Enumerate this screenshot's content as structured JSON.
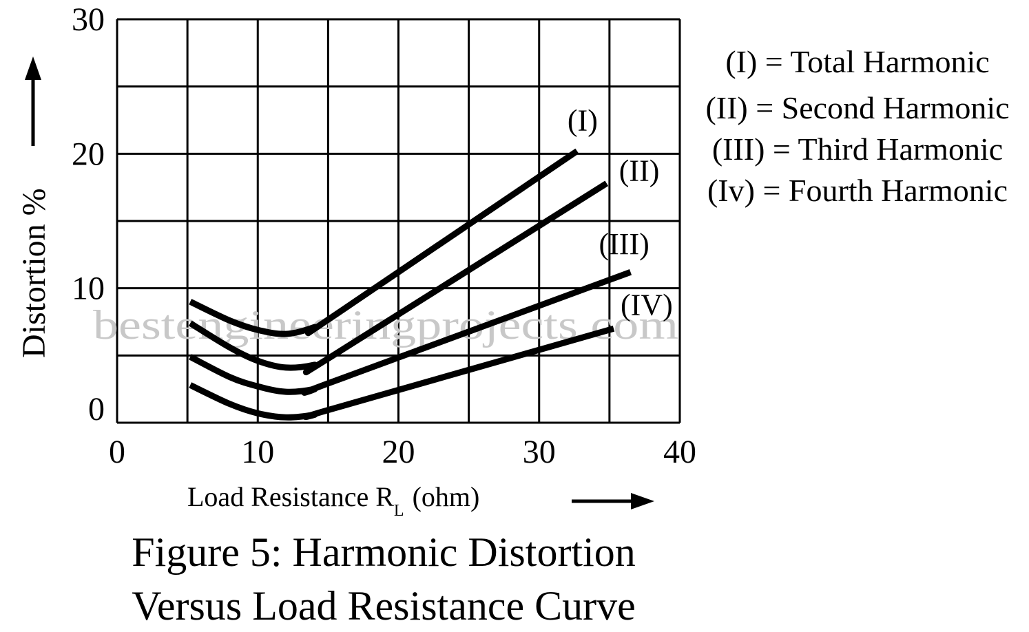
{
  "chart_data": {
    "type": "line",
    "title": "Figure 5: Harmonic Distortion",
    "subtitle": "Versus Load Resistance Curve",
    "xlabel": "Load Resistance R",
    "xlabel_sub": "L",
    "xlabel_unit": "(ohm)",
    "ylabel": "Distortion %",
    "xlim": [
      0,
      40
    ],
    "ylim": [
      0,
      30
    ],
    "x_ticks": [
      0,
      10,
      20,
      30,
      40
    ],
    "x_tick_labels": [
      "0",
      "10",
      "20",
      "30",
      "40"
    ],
    "y_ticks": [
      0,
      10,
      20,
      30
    ],
    "y_tick_labels": [
      "0",
      "10",
      "20",
      "30"
    ],
    "grid": true,
    "grid_x_step": 5,
    "grid_y_step": 5,
    "watermark": "bestengineeringprojects.com",
    "legend_position": "right",
    "legend": [
      "(I) = Total Harmonic",
      "(II) = Second Harmonic",
      "(III) = Third Harmonic",
      "(Iv) = Fourth Harmonic"
    ],
    "series": [
      {
        "name": "(I)",
        "x": [
          5.2,
          8,
          10,
          12,
          14,
          15.2,
          32.7
        ],
        "y": [
          9.0,
          7.6,
          6.9,
          6.6,
          7.1,
          7.8,
          20.2
        ]
      },
      {
        "name": "(II)",
        "x": [
          5.2,
          8,
          10,
          12,
          14,
          15.2,
          34.8
        ],
        "y": [
          7.4,
          5.6,
          4.6,
          4.1,
          4.3,
          4.9,
          17.8
        ]
      },
      {
        "name": "(III)",
        "x": [
          5.2,
          8,
          10,
          12,
          14,
          15.2,
          36.5
        ],
        "y": [
          4.9,
          3.4,
          2.7,
          2.3,
          2.5,
          3.0,
          11.2
        ]
      },
      {
        "name": "(IV)",
        "x": [
          5.2,
          8,
          10,
          12,
          14,
          15.2,
          35.3
        ],
        "y": [
          2.8,
          1.4,
          0.7,
          0.4,
          0.6,
          1.0,
          7.0
        ]
      }
    ]
  }
}
